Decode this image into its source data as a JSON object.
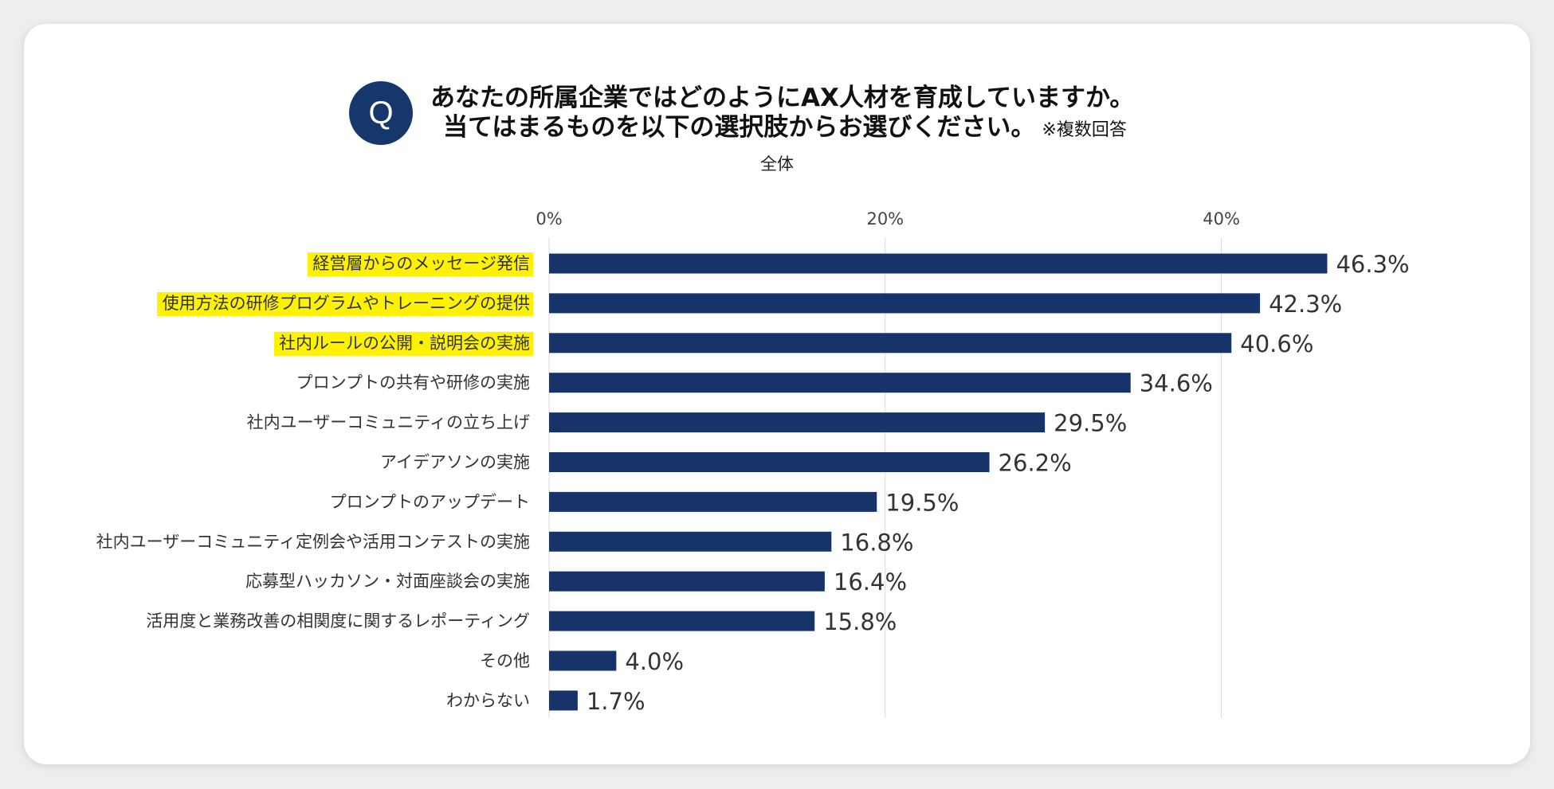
{
  "question": {
    "badge": "Q",
    "line1": "あなたの所属企業ではどのようにAX人材を育成していますか。",
    "line2": "当てはまるものを以下の選択肢からお選びください。",
    "note": "※複数回答"
  },
  "colors": {
    "bar": "#16336a",
    "highlight": "#fff200",
    "grid": "#d9d9d9",
    "badge": "#16376b"
  },
  "chart_data": {
    "type": "bar",
    "orientation": "horizontal",
    "title": "全体",
    "xlim": [
      0,
      50
    ],
    "ticks": [
      {
        "value": 0,
        "label": "0%"
      },
      {
        "value": 20,
        "label": "20%"
      },
      {
        "value": 40,
        "label": "40%"
      }
    ],
    "categories": [
      "経営層からのメッセージ発信",
      "使用方法の研修プログラムやトレーニングの提供",
      "社内ルールの公開・説明会の実施",
      "プロンプトの共有や研修の実施",
      "社内ユーザーコミュニティの立ち上げ",
      "アイデアソンの実施",
      "プロンプトのアップデート",
      "社内ユーザーコミュニティ定例会や活用コンテストの実施",
      "応募型ハッカソン・対面座談会の実施",
      "活用度と業務改善の相関度に関するレポーティング",
      "その他",
      "わからない"
    ],
    "values": [
      46.3,
      42.3,
      40.6,
      34.6,
      29.5,
      26.2,
      19.5,
      16.8,
      16.4,
      15.8,
      4.0,
      1.7
    ],
    "value_labels": [
      "46.3%",
      "42.3%",
      "40.6%",
      "34.6%",
      "29.5%",
      "26.2%",
      "19.5%",
      "16.8%",
      "16.4%",
      "15.8%",
      "4.0%",
      "1.7%"
    ],
    "highlighted": [
      true,
      true,
      true,
      false,
      false,
      false,
      false,
      false,
      false,
      false,
      false,
      false
    ]
  }
}
